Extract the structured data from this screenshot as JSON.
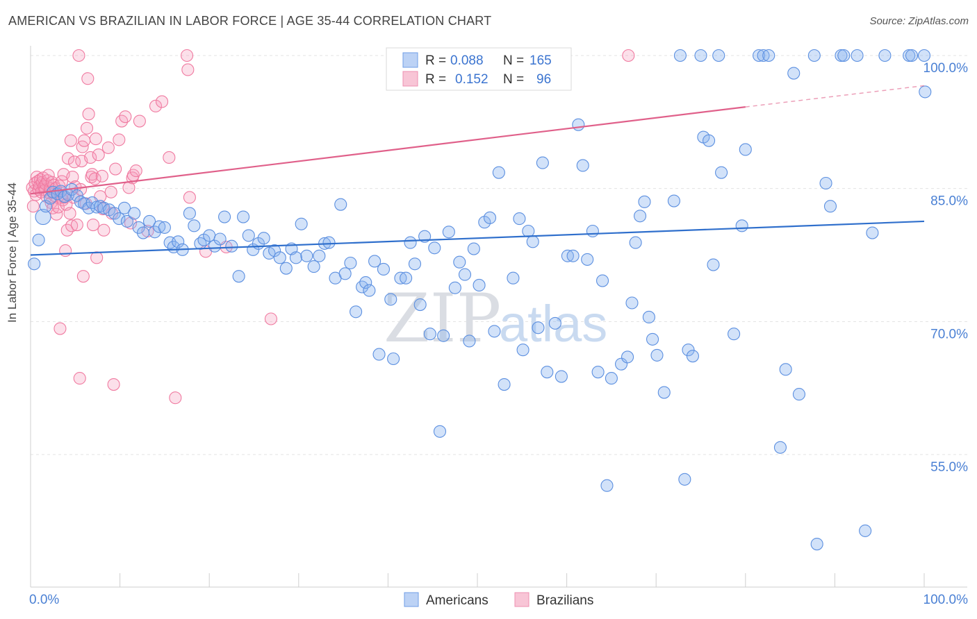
{
  "title": "AMERICAN VS BRAZILIAN IN LABOR FORCE | AGE 35-44 CORRELATION CHART",
  "source": "Source: ZipAtlas.com",
  "watermark": {
    "zip": "ZIP",
    "atlas": "atlas"
  },
  "legend_box": {
    "rows": [
      {
        "r_label": "R =",
        "r_value": "0.088",
        "n_label": "N =",
        "n_value": "165"
      },
      {
        "r_label": "R =",
        "r_value": "0.152",
        "n_label": "N =",
        "n_value": "96"
      }
    ]
  },
  "colors": {
    "americans": "#5b8fe0",
    "brazilians": "#f07aa0",
    "blue_line": "#2f6fcc",
    "pink_line": "#e0608a",
    "tick_text": "#4a80d4"
  },
  "chart_data": {
    "type": "scatter",
    "title": "AMERICAN VS BRAZILIAN IN LABOR FORCE | AGE 35-44 CORRELATION CHART",
    "xlabel": "",
    "ylabel": "In Labor Force | Age 35-44",
    "xlim": [
      0,
      100
    ],
    "ylim": [
      40,
      101
    ],
    "x_tick_labels": [
      "0.0%",
      "100.0%"
    ],
    "y_ticks": [
      55,
      70,
      85,
      100
    ],
    "y_tick_labels": [
      "55.0%",
      "70.0%",
      "85.0%",
      "100.0%"
    ],
    "legend": [
      "Americans",
      "Brazilians"
    ],
    "series": [
      {
        "name": "Americans",
        "stats": {
          "R": 0.088,
          "N": 165
        },
        "trend": {
          "x": [
            0,
            100
          ],
          "y": [
            77.5,
            81.3
          ]
        },
        "points": [
          [
            0.4,
            76.5
          ],
          [
            0.9,
            79.2
          ],
          [
            1.4,
            81.8
          ],
          [
            1.7,
            83.0
          ],
          [
            2.2,
            83.9
          ],
          [
            2.5,
            84.6
          ],
          [
            3.0,
            84.4
          ],
          [
            3.4,
            84.7
          ],
          [
            3.8,
            84.1
          ],
          [
            4.2,
            84.3
          ],
          [
            4.6,
            84.9
          ],
          [
            5.2,
            84.2
          ],
          [
            5.6,
            83.5
          ],
          [
            6.0,
            83.3
          ],
          [
            6.5,
            82.8
          ],
          [
            6.9,
            83.4
          ],
          [
            7.4,
            82.9
          ],
          [
            7.8,
            83.0
          ],
          [
            8.2,
            82.8
          ],
          [
            8.8,
            82.6
          ],
          [
            9.4,
            82.2
          ],
          [
            9.9,
            81.6
          ],
          [
            10.5,
            82.8
          ],
          [
            10.8,
            81.3
          ],
          [
            11.6,
            82.2
          ],
          [
            12.1,
            80.6
          ],
          [
            12.6,
            80.0
          ],
          [
            13.3,
            81.3
          ],
          [
            13.9,
            80.1
          ],
          [
            14.4,
            80.7
          ],
          [
            15.0,
            80.6
          ],
          [
            15.6,
            78.9
          ],
          [
            16.0,
            78.4
          ],
          [
            16.5,
            79.0
          ],
          [
            17.0,
            78.1
          ],
          [
            17.8,
            82.2
          ],
          [
            18.3,
            80.8
          ],
          [
            19.0,
            78.8
          ],
          [
            19.4,
            79.2
          ],
          [
            20.0,
            79.7
          ],
          [
            20.6,
            78.5
          ],
          [
            21.2,
            79.3
          ],
          [
            21.7,
            81.8
          ],
          [
            22.5,
            78.5
          ],
          [
            23.3,
            75.1
          ],
          [
            23.8,
            81.8
          ],
          [
            24.4,
            79.7
          ],
          [
            24.9,
            78.1
          ],
          [
            25.5,
            78.8
          ],
          [
            26.1,
            79.4
          ],
          [
            26.7,
            77.7
          ],
          [
            27.3,
            78.0
          ],
          [
            27.9,
            77.2
          ],
          [
            28.6,
            76.0
          ],
          [
            29.2,
            78.2
          ],
          [
            29.7,
            77.2
          ],
          [
            30.3,
            81.0
          ],
          [
            30.9,
            77.4
          ],
          [
            31.7,
            76.2
          ],
          [
            32.3,
            77.4
          ],
          [
            32.9,
            78.8
          ],
          [
            33.4,
            78.9
          ],
          [
            34.1,
            74.9
          ],
          [
            34.7,
            83.2
          ],
          [
            35.2,
            75.4
          ],
          [
            35.8,
            76.6
          ],
          [
            36.4,
            71.1
          ],
          [
            37.1,
            73.9
          ],
          [
            37.5,
            74.4
          ],
          [
            37.9,
            73.5
          ],
          [
            38.5,
            76.8
          ],
          [
            39.0,
            66.3
          ],
          [
            39.5,
            75.9
          ],
          [
            40.3,
            72.5
          ],
          [
            40.6,
            65.8
          ],
          [
            41.4,
            74.9
          ],
          [
            42.0,
            74.9
          ],
          [
            42.5,
            78.9
          ],
          [
            43.0,
            76.5
          ],
          [
            43.6,
            71.9
          ],
          [
            44.1,
            79.6
          ],
          [
            44.7,
            68.6
          ],
          [
            45.2,
            78.3
          ],
          [
            45.8,
            57.6
          ],
          [
            46.2,
            68.4
          ],
          [
            46.8,
            80.1
          ],
          [
            47.5,
            73.8
          ],
          [
            48.0,
            76.7
          ],
          [
            48.6,
            75.3
          ],
          [
            49.1,
            67.8
          ],
          [
            49.6,
            78.2
          ],
          [
            50.2,
            74.1
          ],
          [
            50.8,
            81.2
          ],
          [
            51.4,
            81.7
          ],
          [
            51.9,
            68.9
          ],
          [
            52.4,
            86.8
          ],
          [
            53.0,
            62.9
          ],
          [
            54.0,
            74.9
          ],
          [
            54.7,
            81.6
          ],
          [
            55.1,
            66.8
          ],
          [
            55.7,
            80.2
          ],
          [
            56.2,
            79.0
          ],
          [
            56.8,
            69.3
          ],
          [
            57.3,
            87.9
          ],
          [
            57.8,
            64.3
          ],
          [
            58.7,
            69.8
          ],
          [
            59.4,
            63.8
          ],
          [
            60.1,
            77.4
          ],
          [
            60.7,
            77.4
          ],
          [
            61.3,
            92.2
          ],
          [
            61.8,
            87.6
          ],
          [
            62.3,
            77.0
          ],
          [
            62.9,
            80.2
          ],
          [
            63.5,
            64.3
          ],
          [
            64.0,
            74.6
          ],
          [
            64.5,
            51.5
          ],
          [
            65.0,
            63.6
          ],
          [
            66.1,
            65.2
          ],
          [
            66.8,
            66.0
          ],
          [
            67.3,
            72.1
          ],
          [
            67.7,
            78.9
          ],
          [
            68.2,
            81.9
          ],
          [
            68.7,
            83.5
          ],
          [
            69.2,
            70.5
          ],
          [
            69.6,
            68.0
          ],
          [
            70.1,
            66.2
          ],
          [
            70.9,
            62.0
          ],
          [
            72.0,
            83.6
          ],
          [
            72.7,
            100
          ],
          [
            73.2,
            52.2
          ],
          [
            73.6,
            66.8
          ],
          [
            74.1,
            66.1
          ],
          [
            75.0,
            100
          ],
          [
            75.3,
            90.8
          ],
          [
            75.9,
            90.4
          ],
          [
            76.4,
            76.4
          ],
          [
            77.0,
            100
          ],
          [
            77.3,
            86.8
          ],
          [
            78.7,
            68.6
          ],
          [
            79.6,
            80.8
          ],
          [
            80.0,
            89.4
          ],
          [
            81.5,
            100
          ],
          [
            82.0,
            100
          ],
          [
            82.6,
            100
          ],
          [
            83.9,
            55.8
          ],
          [
            84.5,
            64.6
          ],
          [
            85.4,
            98.0
          ],
          [
            86.0,
            61.8
          ],
          [
            87.7,
            100
          ],
          [
            88.0,
            44.9
          ],
          [
            89.0,
            85.6
          ],
          [
            89.5,
            83.0
          ],
          [
            90.7,
            100
          ],
          [
            91.0,
            100
          ],
          [
            92.5,
            100
          ],
          [
            93.4,
            46.4
          ],
          [
            94.2,
            80.0
          ],
          [
            95.6,
            100
          ],
          [
            98.3,
            100
          ],
          [
            98.6,
            100
          ],
          [
            100.0,
            100
          ],
          [
            100.1,
            95.9
          ]
        ]
      },
      {
        "name": "Brazilians",
        "stats": {
          "R": 0.152,
          "N": 96
        },
        "trend": {
          "x": [
            0,
            80
          ],
          "y": [
            84.4,
            94.2
          ],
          "dashed_extension": {
            "x": [
              80,
              100
            ],
            "y": [
              94.2,
              96.6
            ]
          }
        },
        "points": [
          [
            0.2,
            85.1
          ],
          [
            0.3,
            83.0
          ],
          [
            0.4,
            84.7
          ],
          [
            0.5,
            85.6
          ],
          [
            0.6,
            84.3
          ],
          [
            0.7,
            86.3
          ],
          [
            0.8,
            85.8
          ],
          [
            0.9,
            84.9
          ],
          [
            1.0,
            85.3
          ],
          [
            1.1,
            86.0
          ],
          [
            1.2,
            84.6
          ],
          [
            1.3,
            85.7
          ],
          [
            1.4,
            86.2
          ],
          [
            1.5,
            85.2
          ],
          [
            1.6,
            84.8
          ],
          [
            1.7,
            85.5
          ],
          [
            1.8,
            84.1
          ],
          [
            1.9,
            85.9
          ],
          [
            2.0,
            86.5
          ],
          [
            2.1,
            84.5
          ],
          [
            2.2,
            85.0
          ],
          [
            2.3,
            83.4
          ],
          [
            2.4,
            85.7
          ],
          [
            2.5,
            82.8
          ],
          [
            2.6,
            85.4
          ],
          [
            2.7,
            84.2
          ],
          [
            2.8,
            85.0
          ],
          [
            2.9,
            82.1
          ],
          [
            3.0,
            84.4
          ],
          [
            3.1,
            82.9
          ],
          [
            3.2,
            85.3
          ],
          [
            3.3,
            69.2
          ],
          [
            3.4,
            84.0
          ],
          [
            3.5,
            85.8
          ],
          [
            3.6,
            83.7
          ],
          [
            3.7,
            86.6
          ],
          [
            3.8,
            84.0
          ],
          [
            3.9,
            78.0
          ],
          [
            4.0,
            83.2
          ],
          [
            4.1,
            80.3
          ],
          [
            4.2,
            88.4
          ],
          [
            4.4,
            82.2
          ],
          [
            4.5,
            90.4
          ],
          [
            4.6,
            80.8
          ],
          [
            4.7,
            86.3
          ],
          [
            4.8,
            84.0
          ],
          [
            4.9,
            88.0
          ],
          [
            5.0,
            85.2
          ],
          [
            5.2,
            80.9
          ],
          [
            5.4,
            100
          ],
          [
            5.5,
            63.6
          ],
          [
            5.6,
            84.9
          ],
          [
            5.7,
            88.1
          ],
          [
            5.8,
            89.7
          ],
          [
            5.9,
            75.1
          ],
          [
            6.0,
            90.4
          ],
          [
            6.2,
            83.3
          ],
          [
            6.3,
            91.8
          ],
          [
            6.4,
            97.4
          ],
          [
            6.5,
            93.4
          ],
          [
            6.7,
            88.5
          ],
          [
            6.8,
            86.3
          ],
          [
            6.9,
            86.6
          ],
          [
            7.0,
            80.9
          ],
          [
            7.2,
            86.1
          ],
          [
            7.3,
            90.6
          ],
          [
            7.4,
            77.2
          ],
          [
            7.6,
            88.8
          ],
          [
            7.8,
            84.1
          ],
          [
            8.0,
            86.4
          ],
          [
            8.1,
            82.7
          ],
          [
            8.2,
            80.3
          ],
          [
            8.7,
            89.6
          ],
          [
            9.0,
            84.6
          ],
          [
            9.1,
            82.2
          ],
          [
            9.3,
            62.9
          ],
          [
            9.5,
            87.2
          ],
          [
            9.9,
            90.5
          ],
          [
            10.2,
            92.6
          ],
          [
            10.6,
            93.1
          ],
          [
            11.0,
            85.1
          ],
          [
            11.2,
            81.1
          ],
          [
            11.4,
            86.2
          ],
          [
            11.5,
            86.5
          ],
          [
            11.8,
            87.0
          ],
          [
            12.2,
            92.6
          ],
          [
            13.1,
            80.2
          ],
          [
            14.0,
            94.3
          ],
          [
            14.7,
            94.8
          ],
          [
            15.5,
            88.5
          ],
          [
            16.2,
            61.4
          ],
          [
            17.5,
            100
          ],
          [
            17.6,
            98.4
          ],
          [
            17.8,
            84.0
          ],
          [
            19.6,
            77.9
          ],
          [
            21.9,
            78.4
          ],
          [
            26.9,
            70.3
          ],
          [
            66.9,
            100
          ]
        ]
      }
    ]
  }
}
